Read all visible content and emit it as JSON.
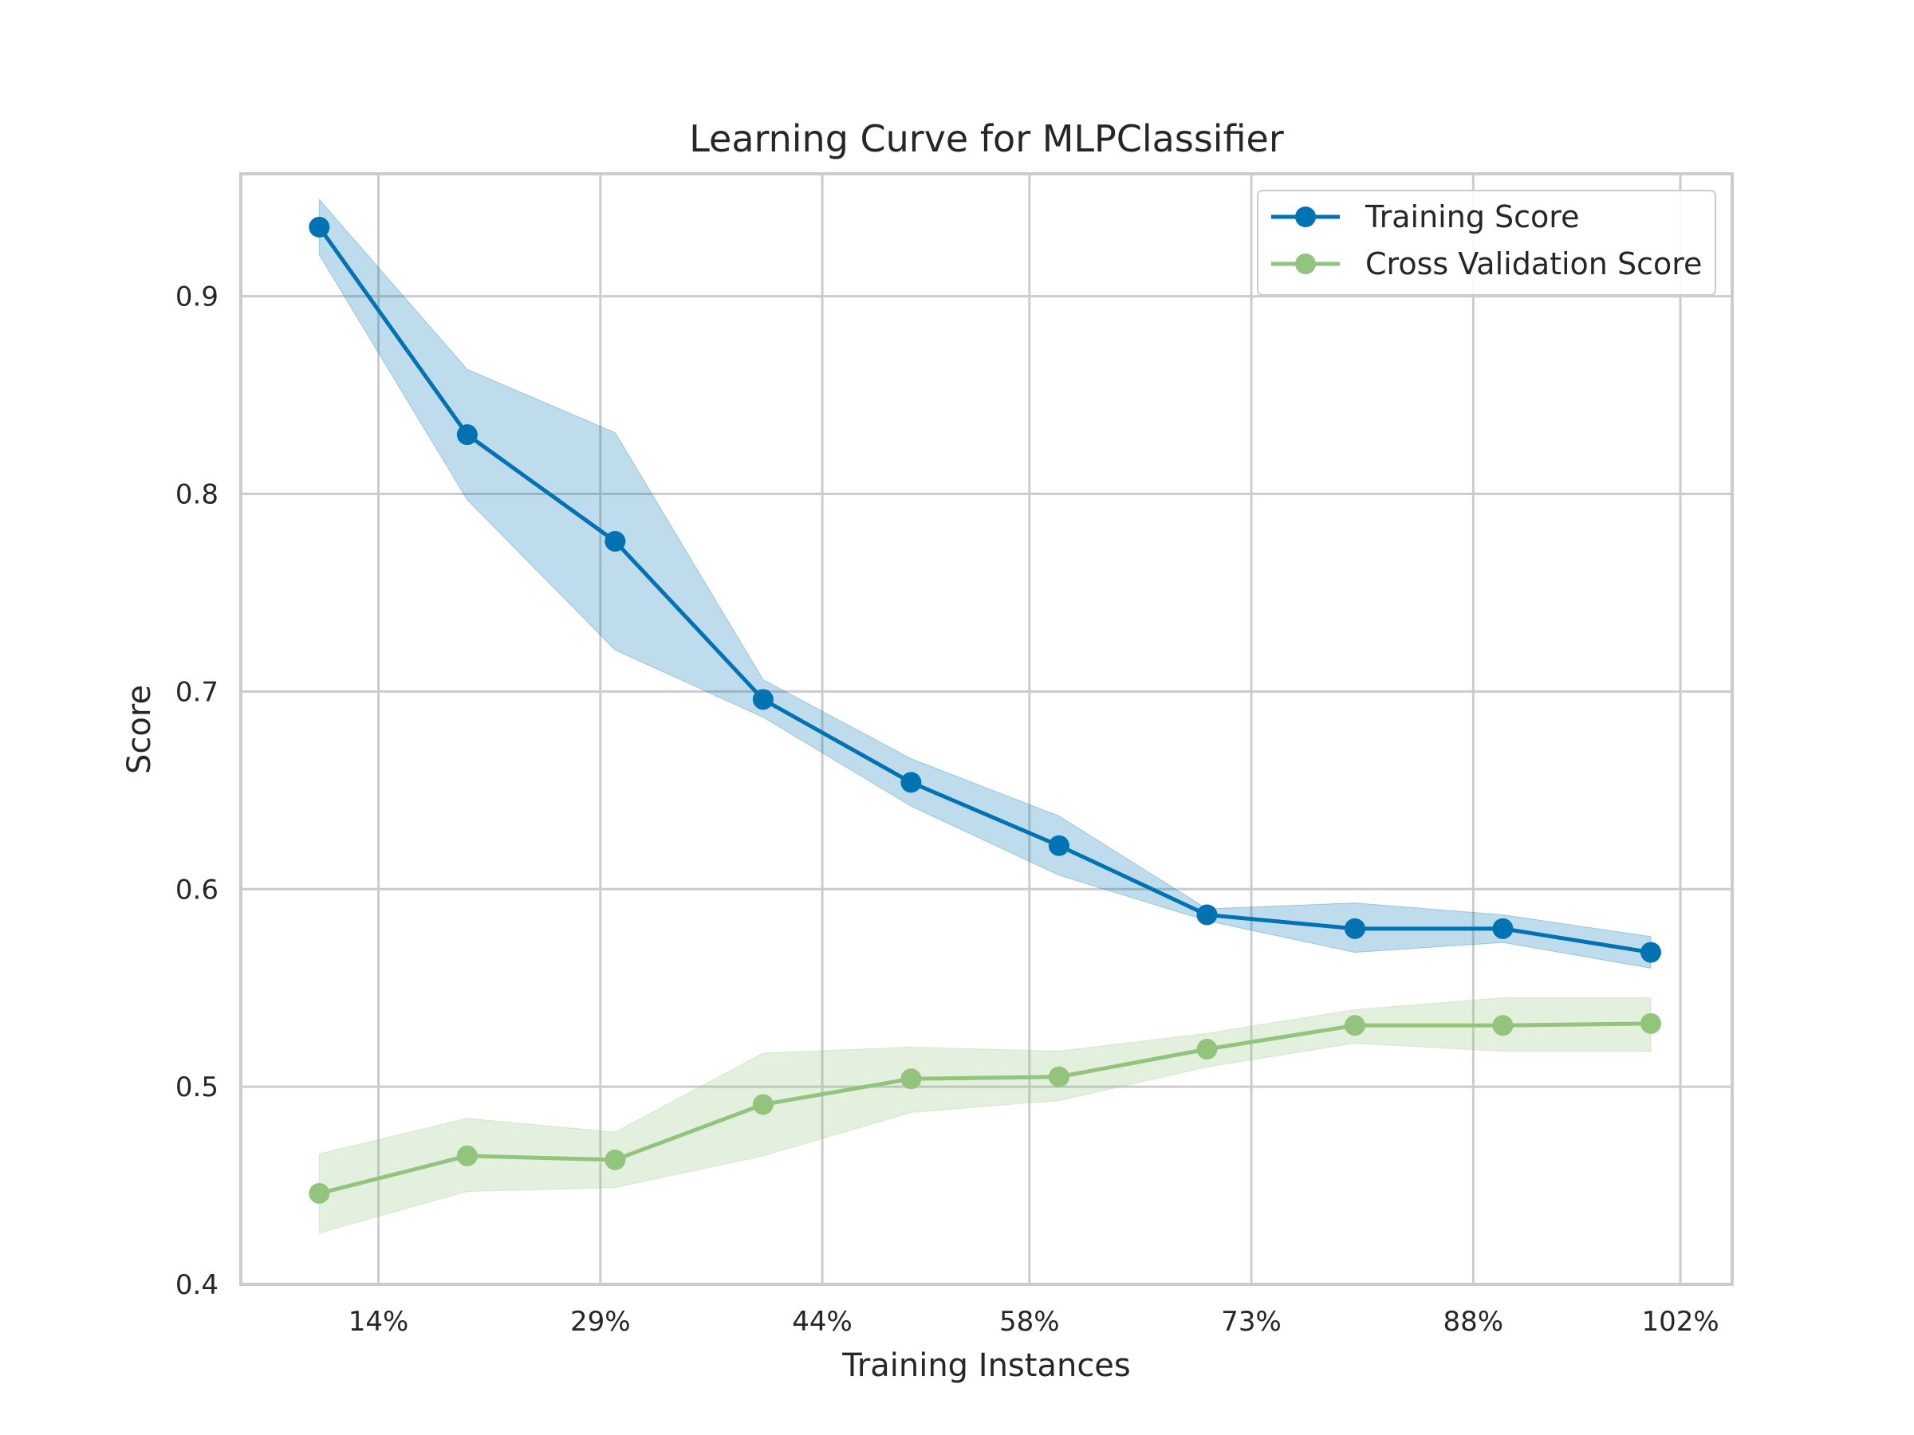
{
  "chart_data": {
    "type": "line",
    "title": "Learning Curve for MLPClassifier",
    "xlabel": "Training Instances",
    "ylabel": "Score",
    "xticks": [
      0.14,
      0.29,
      0.44,
      0.58,
      0.73,
      0.88,
      1.02
    ],
    "xtick_labels": [
      "14%",
      "29%",
      "44%",
      "58%",
      "73%",
      "88%",
      "102%"
    ],
    "yticks": [
      0.4,
      0.5,
      0.6,
      0.7,
      0.8,
      0.9
    ],
    "ytick_labels": [
      "0.4",
      "0.5",
      "0.6",
      "0.7",
      "0.8",
      "0.9"
    ],
    "xlim": [
      0.047,
      1.055
    ],
    "ylim": [
      0.4,
      0.962
    ],
    "grid": true,
    "legend_position": "top-right",
    "x": [
      0.1,
      0.2,
      0.3,
      0.4,
      0.5,
      0.6,
      0.7,
      0.8,
      0.9,
      1.0
    ],
    "series": [
      {
        "name": "Training Score",
        "color": "#0173b2",
        "values": [
          0.935,
          0.83,
          0.776,
          0.696,
          0.654,
          0.622,
          0.587,
          0.58,
          0.58,
          0.568
        ],
        "band_upper": [
          0.949,
          0.863,
          0.831,
          0.706,
          0.666,
          0.637,
          0.59,
          0.593,
          0.587,
          0.576
        ],
        "band_lower": [
          0.921,
          0.797,
          0.721,
          0.687,
          0.642,
          0.607,
          0.584,
          0.568,
          0.573,
          0.56
        ]
      },
      {
        "name": "Cross Validation Score",
        "color": "#93c47d",
        "values": [
          0.446,
          0.465,
          0.463,
          0.491,
          0.504,
          0.505,
          0.519,
          0.531,
          0.531,
          0.532
        ],
        "band_upper": [
          0.466,
          0.484,
          0.477,
          0.517,
          0.52,
          0.518,
          0.527,
          0.539,
          0.545,
          0.545
        ],
        "band_lower": [
          0.426,
          0.447,
          0.449,
          0.465,
          0.487,
          0.493,
          0.51,
          0.522,
          0.518,
          0.518
        ]
      }
    ]
  }
}
